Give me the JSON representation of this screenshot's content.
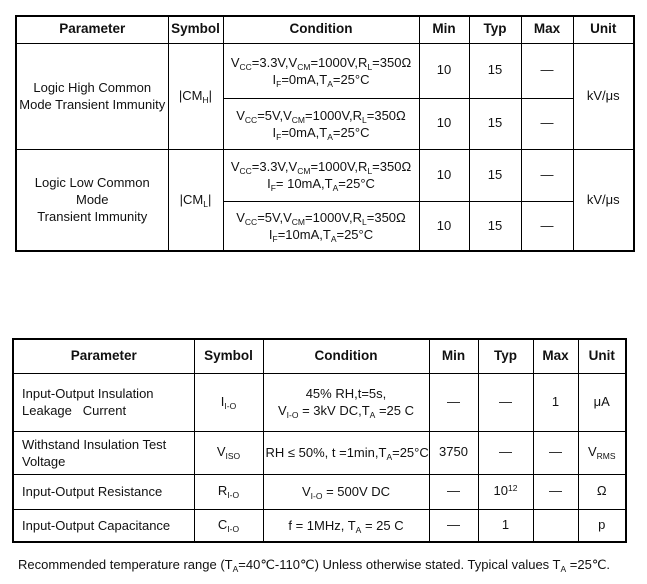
{
  "table1": {
    "headers": {
      "parameter": "Parameter",
      "symbol": "Symbol",
      "condition": "Condition",
      "min": "Min",
      "typ": "Typ",
      "max": "Max",
      "unit": "Unit"
    },
    "group_high": {
      "parameter_line1": "Logic High Common",
      "parameter_line2": "Mode Transient Immunity",
      "symbol": [
        [
          "n",
          "|CM"
        ],
        [
          "s",
          "H"
        ],
        [
          "n",
          "|"
        ]
      ],
      "unit": "kV/μs",
      "row1": {
        "condition_line1": [
          [
            "n",
            "V"
          ],
          [
            "s",
            "CC"
          ],
          [
            "n",
            "=3.3V,V"
          ],
          [
            "s",
            "CM"
          ],
          [
            "n",
            "=1000V,R"
          ],
          [
            "s",
            "L"
          ],
          [
            "n",
            "=350Ω"
          ]
        ],
        "condition_line2": [
          [
            "n",
            "I"
          ],
          [
            "s",
            "F"
          ],
          [
            "n",
            "=0mA,T"
          ],
          [
            "s",
            "A"
          ],
          [
            "n",
            "=25°C"
          ]
        ],
        "min": "10",
        "typ": "15",
        "max": "—"
      },
      "row2": {
        "condition_line1": [
          [
            "n",
            "V"
          ],
          [
            "s",
            "CC"
          ],
          [
            "n",
            "=5V,V"
          ],
          [
            "s",
            "CM"
          ],
          [
            "n",
            "=1000V,R"
          ],
          [
            "s",
            "L"
          ],
          [
            "n",
            "=350Ω"
          ]
        ],
        "condition_line2": [
          [
            "n",
            "I"
          ],
          [
            "s",
            "F"
          ],
          [
            "n",
            "=0mA,T"
          ],
          [
            "s",
            "A"
          ],
          [
            "n",
            "=25°C"
          ]
        ],
        "min": "10",
        "typ": "15",
        "max": "—"
      }
    },
    "group_low": {
      "parameter_line1": "Logic Low Common Mode",
      "parameter_line2": "Transient Immunity",
      "symbol": [
        [
          "n",
          "|CM"
        ],
        [
          "s",
          "L"
        ],
        [
          "n",
          "|"
        ]
      ],
      "unit": "kV/μs",
      "row1": {
        "condition_line1": [
          [
            "n",
            "V"
          ],
          [
            "s",
            "CC"
          ],
          [
            "n",
            "=3.3V,V"
          ],
          [
            "s",
            "CM"
          ],
          [
            "n",
            "=1000V,R"
          ],
          [
            "s",
            "L"
          ],
          [
            "n",
            "=350Ω"
          ]
        ],
        "condition_line2": [
          [
            "n",
            "I"
          ],
          [
            "s",
            "F"
          ],
          [
            "n",
            "= 10mA,T"
          ],
          [
            "s",
            "A"
          ],
          [
            "n",
            "=25°C"
          ]
        ],
        "min": "10",
        "typ": "15",
        "max": "—"
      },
      "row2": {
        "condition_line1": [
          [
            "n",
            "V"
          ],
          [
            "s",
            "CC"
          ],
          [
            "n",
            "=5V,V"
          ],
          [
            "s",
            "CM"
          ],
          [
            "n",
            "=1000V,R"
          ],
          [
            "s",
            "L"
          ],
          [
            "n",
            "=350Ω"
          ]
        ],
        "condition_line2": [
          [
            "n",
            "I"
          ],
          [
            "s",
            "F"
          ],
          [
            "n",
            "=10mA,T"
          ],
          [
            "s",
            "A"
          ],
          [
            "n",
            "=25°C"
          ]
        ],
        "min": "10",
        "typ": "15",
        "max": "—"
      }
    }
  },
  "table2": {
    "headers": {
      "parameter": "Parameter",
      "symbol": "Symbol",
      "condition": "Condition",
      "min": "Min",
      "typ": "Typ",
      "max": "Max",
      "unit": "Unit"
    },
    "rows": [
      {
        "parameter_line1": "Input-Output Insulation",
        "parameter_line2": "Leakage   Current",
        "symbol": [
          [
            "n",
            "I"
          ],
          [
            "s",
            "I-O"
          ]
        ],
        "condition_line1": [
          [
            "n",
            "45% RH,t=5s,"
          ]
        ],
        "condition_line2": [
          [
            "n",
            "V"
          ],
          [
            "s",
            "I-O"
          ],
          [
            "n",
            " = 3kV DC,T"
          ],
          [
            "s",
            "A"
          ],
          [
            "n",
            " =25 C"
          ]
        ],
        "min": "—",
        "typ": "—",
        "max": "1",
        "unit": [
          [
            "n",
            "μA"
          ]
        ]
      },
      {
        "parameter_line1": "Withstand Insulation Test",
        "parameter_line2": "Voltage",
        "symbol": [
          [
            "n",
            "V"
          ],
          [
            "s",
            "ISO"
          ]
        ],
        "condition_line1": [
          [
            "n",
            "RH ≤ 50%, t =1min,T"
          ],
          [
            "s",
            "A"
          ],
          [
            "n",
            "=25°C"
          ]
        ],
        "min": "3750",
        "typ": "—",
        "max": "—",
        "unit": [
          [
            "n",
            "V"
          ],
          [
            "s",
            "RMS"
          ]
        ]
      },
      {
        "parameter_line1": "Input-Output Resistance",
        "symbol": [
          [
            "n",
            "R"
          ],
          [
            "s",
            "I-O"
          ]
        ],
        "condition_line1": [
          [
            "n",
            "V"
          ],
          [
            "s",
            "I-O"
          ],
          [
            "n",
            " = 500V DC"
          ]
        ],
        "min": "—",
        "typ": [
          [
            "n",
            "10"
          ],
          [
            "p",
            "12"
          ]
        ],
        "max": "—",
        "unit": [
          [
            "n",
            "Ω"
          ]
        ]
      },
      {
        "parameter_line1": "Input-Output Capacitance",
        "symbol": [
          [
            "n",
            "C"
          ],
          [
            "s",
            "I-O"
          ]
        ],
        "condition_line1": [
          [
            "n",
            "f = 1MHz, T"
          ],
          [
            "s",
            "A"
          ],
          [
            "n",
            " = 25 C"
          ]
        ],
        "min": "—",
        "typ": "1",
        "max": "",
        "unit": [
          [
            "n",
            "p"
          ]
        ]
      }
    ]
  },
  "footer": [
    [
      "n",
      "Recommended temperature range (T"
    ],
    [
      "s",
      "A"
    ],
    [
      "n",
      "=40℃-110℃) Unless otherwise stated. Typical values T"
    ],
    [
      "s",
      "A"
    ],
    [
      "n",
      " =25℃."
    ]
  ]
}
